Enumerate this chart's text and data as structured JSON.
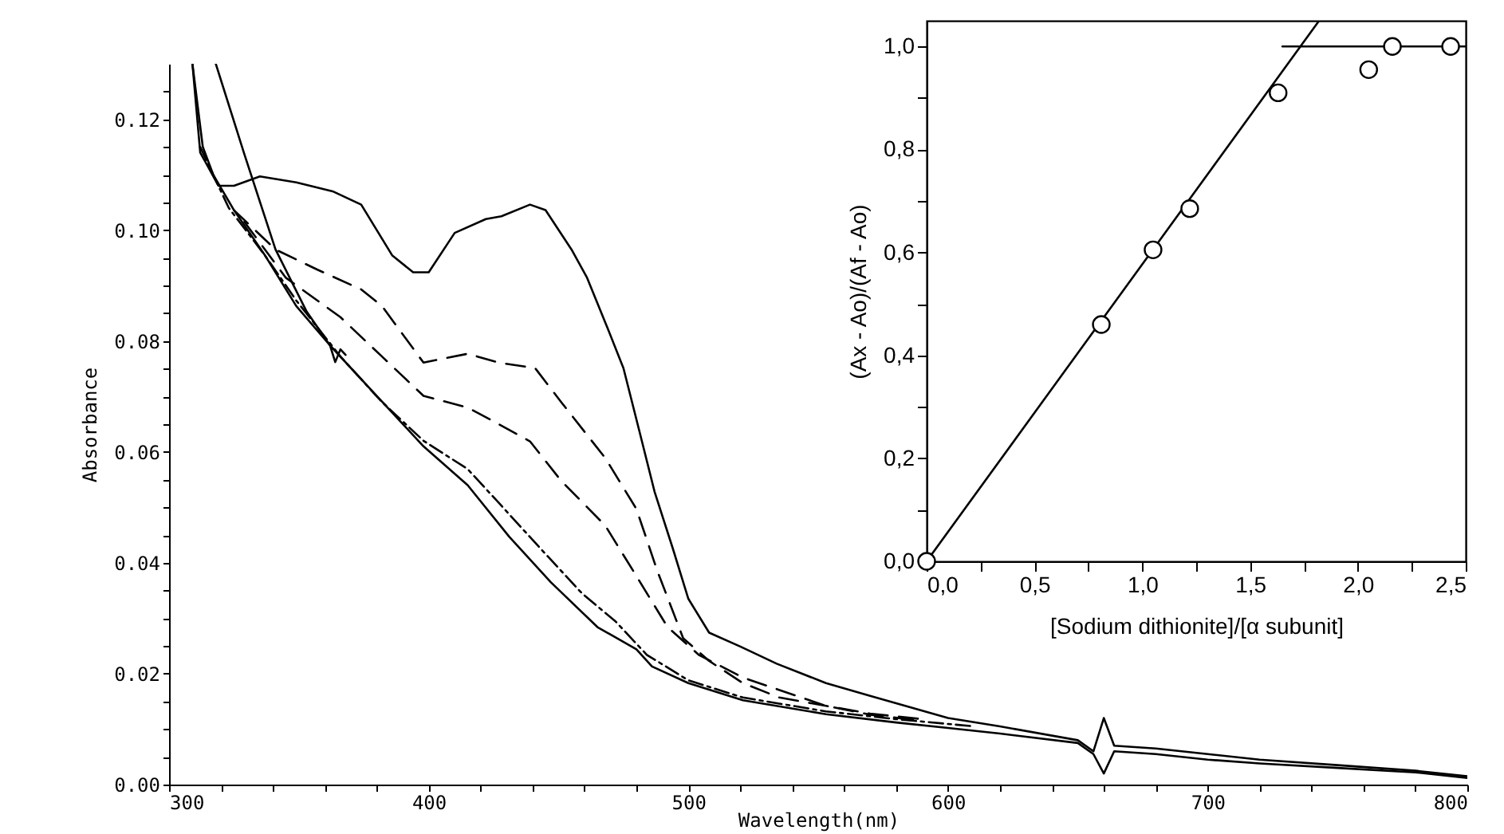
{
  "chart_data": [
    {
      "type": "line",
      "xlabel": "Wavelength(nm)",
      "ylabel": "Absorbance",
      "xlim": [
        300,
        800
      ],
      "ylim": [
        0,
        0.13
      ],
      "xticks": [
        {
          "value": 300,
          "label": "300"
        },
        {
          "value": 320,
          "label": null
        },
        {
          "value": 340,
          "label": null
        },
        {
          "value": 360,
          "label": null
        },
        {
          "value": 380,
          "label": null
        },
        {
          "value": 400,
          "label": "400"
        },
        {
          "value": 420,
          "label": null
        },
        {
          "value": 440,
          "label": null
        },
        {
          "value": 460,
          "label": null
        },
        {
          "value": 480,
          "label": null
        },
        {
          "value": 500,
          "label": "500"
        },
        {
          "value": 520,
          "label": null
        },
        {
          "value": 540,
          "label": null
        },
        {
          "value": 560,
          "label": null
        },
        {
          "value": 580,
          "label": null
        },
        {
          "value": 600,
          "label": "600"
        },
        {
          "value": 620,
          "label": null
        },
        {
          "value": 640,
          "label": null
        },
        {
          "value": 660,
          "label": null
        },
        {
          "value": 680,
          "label": null
        },
        {
          "value": 700,
          "label": "700"
        },
        {
          "value": 720,
          "label": null
        },
        {
          "value": 740,
          "label": null
        },
        {
          "value": 760,
          "label": null
        },
        {
          "value": 780,
          "label": null
        },
        {
          "value": 800,
          "label": "800"
        }
      ],
      "yticks": [
        {
          "value": 0,
          "label": "0.00"
        },
        {
          "value": 0.005,
          "label": null
        },
        {
          "value": 0.01,
          "label": null
        },
        {
          "value": 0.015,
          "label": null
        },
        {
          "value": 0.02,
          "label": "0.02"
        },
        {
          "value": 0.025,
          "label": null
        },
        {
          "value": 0.03,
          "label": null
        },
        {
          "value": 0.035,
          "label": null
        },
        {
          "value": 0.04,
          "label": "0.04"
        },
        {
          "value": 0.045,
          "label": null
        },
        {
          "value": 0.05,
          "label": null
        },
        {
          "value": 0.055,
          "label": null
        },
        {
          "value": 0.06,
          "label": "0.06"
        },
        {
          "value": 0.065,
          "label": null
        },
        {
          "value": 0.07,
          "label": null
        },
        {
          "value": 0.075,
          "label": null
        },
        {
          "value": 0.08,
          "label": "0.08"
        },
        {
          "value": 0.085,
          "label": null
        },
        {
          "value": 0.09,
          "label": null
        },
        {
          "value": 0.095,
          "label": null
        },
        {
          "value": 0.1,
          "label": "0.10"
        },
        {
          "value": 0.105,
          "label": null
        },
        {
          "value": 0.11,
          "label": null
        },
        {
          "value": 0.115,
          "label": null
        },
        {
          "value": 0.12,
          "label": "0.12"
        },
        {
          "value": 0.125,
          "label": null
        }
      ],
      "series": [
        {
          "color": "#000000",
          "line_style": "solid",
          "x": [
            309,
            312,
            319,
            325,
            335,
            349,
            363,
            374,
            386,
            394,
            400,
            410,
            422,
            428,
            439,
            445,
            455,
            461,
            469,
            475,
            481,
            487,
            494,
            500,
            508,
            520,
            534,
            553,
            570,
            600,
            620,
            650,
            656,
            660,
            664,
            680,
            700,
            720,
            750,
            780,
            800
          ],
          "values": [
            0.13,
            0.114,
            0.108,
            0.108,
            0.1097,
            0.1086,
            0.107,
            0.1046,
            0.0954,
            0.0924,
            0.0924,
            0.0995,
            0.102,
            0.1025,
            0.1046,
            0.1036,
            0.0965,
            0.0914,
            0.0822,
            0.0751,
            0.064,
            0.0528,
            0.0426,
            0.0335,
            0.0274,
            0.0249,
            0.0218,
            0.0183,
            0.016,
            0.012,
            0.0105,
            0.008,
            0.006,
            0.012,
            0.007,
            0.0065,
            0.0055,
            0.0045,
            0.0035,
            0.0025,
            0.0015
          ]
        },
        {
          "color": "#000000",
          "line_style": "dashed",
          "x": [
            325,
            341,
            357,
            374,
            382,
            398,
            415,
            427,
            441,
            451,
            468,
            480,
            488,
            498,
            508,
            521,
            535,
            553,
            570,
            590
          ],
          "values": [
            0.1036,
            0.0965,
            0.0929,
            0.0893,
            0.0863,
            0.0761,
            0.0777,
            0.0761,
            0.0751,
            0.069,
            0.0589,
            0.0497,
            0.0386,
            0.0264,
            0.0223,
            0.0183,
            0.0157,
            0.0142,
            0.0128,
            0.0118
          ]
        },
        {
          "color": "#000000",
          "line_style": "dashed",
          "x": [
            329,
            345,
            366,
            382,
            398,
            415,
            427,
            439,
            451,
            468,
            480,
            492,
            504,
            521,
            553,
            570,
            590
          ],
          "values": [
            0.1015,
            0.0914,
            0.0843,
            0.0772,
            0.0701,
            0.068,
            0.065,
            0.0619,
            0.0548,
            0.0467,
            0.0376,
            0.0284,
            0.0234,
            0.0193,
            0.0142,
            0.0126,
            0.0115
          ]
        },
        {
          "color": "#000000",
          "line_style": "dashdot",
          "x": [
            312,
            323,
            337,
            349,
            366,
            382,
            398,
            415,
            427,
            443,
            459,
            472,
            484,
            500,
            521,
            553,
            580,
            610
          ],
          "values": [
            0.115,
            0.104,
            0.0954,
            0.0873,
            0.0772,
            0.069,
            0.062,
            0.0569,
            0.0508,
            0.0426,
            0.0345,
            0.0294,
            0.0234,
            0.0188,
            0.0157,
            0.0132,
            0.0118,
            0.0105
          ]
        },
        {
          "color": "#000000",
          "line_style": "solid",
          "x": [
            309,
            313,
            317,
            325,
            337,
            349,
            362,
            378,
            398,
            415,
            431,
            447,
            465,
            480,
            486,
            500,
            521,
            553,
            580,
            600,
            620,
            650,
            656,
            660,
            664,
            680,
            700,
            720,
            750,
            780,
            800
          ],
          "values": [
            0.13,
            0.115,
            0.11,
            0.1036,
            0.0954,
            0.0863,
            0.0792,
            0.0711,
            0.061,
            0.054,
            0.0447,
            0.0365,
            0.0284,
            0.0244,
            0.0213,
            0.0183,
            0.0152,
            0.0127,
            0.0112,
            0.0102,
            0.0092,
            0.0075,
            0.0055,
            0.002,
            0.006,
            0.0055,
            0.0045,
            0.0038,
            0.003,
            0.0022,
            0.0012
          ]
        },
        {
          "color": "#000000",
          "line_style": "solid",
          "x": [
            318,
            329,
            341,
            353,
            362,
            364,
            366,
            368
          ],
          "values": [
            0.13,
            0.1137,
            0.0965,
            0.0853,
            0.0792,
            0.0762,
            0.0785,
            0.0775
          ]
        }
      ]
    },
    {
      "type": "scatter",
      "xlabel": "[Sodium dithionite]/[α subunit]",
      "ylabel": "(Ax - Ao)/(Af - Ao)",
      "xlim": [
        0,
        2.5
      ],
      "ylim": [
        0,
        1.05
      ],
      "xticks": [
        {
          "value": 0,
          "label": "0,0"
        },
        {
          "value": 0.25,
          "label": null
        },
        {
          "value": 0.5,
          "label": "0,5"
        },
        {
          "value": 0.75,
          "label": null
        },
        {
          "value": 1,
          "label": "1,0"
        },
        {
          "value": 1.25,
          "label": null
        },
        {
          "value": 1.5,
          "label": "1,5"
        },
        {
          "value": 1.75,
          "label": null
        },
        {
          "value": 2,
          "label": "2,0"
        },
        {
          "value": 2.25,
          "label": null
        },
        {
          "value": 2.5,
          "label": "2,5"
        }
      ],
      "yticks": [
        {
          "value": 0,
          "label": "0,0"
        },
        {
          "value": 0.1,
          "label": null
        },
        {
          "value": 0.2,
          "label": "0,2"
        },
        {
          "value": 0.3,
          "label": null
        },
        {
          "value": 0.4,
          "label": "0,4"
        },
        {
          "value": 0.5,
          "label": null
        },
        {
          "value": 0.6,
          "label": "0,6"
        },
        {
          "value": 0.7,
          "label": null
        },
        {
          "value": 0.8,
          "label": "0,8"
        },
        {
          "value": 0.9,
          "label": null
        },
        {
          "value": 1,
          "label": "1,0"
        }
      ],
      "series": [
        {
          "marker": "circle",
          "color": "#000000",
          "x": [
            0,
            0.81,
            1.05,
            1.22,
            1.63,
            2.05,
            2.16,
            2.43
          ],
          "values": [
            0,
            0.46,
            0.605,
            0.685,
            0.91,
            0.955,
            1.0,
            1.0
          ]
        },
        {
          "type": "line",
          "color": "#000000",
          "x": [
            0,
            1.82
          ],
          "values": [
            0,
            1.05
          ]
        },
        {
          "type": "line",
          "color": "#000000",
          "x": [
            1.65,
            2.5
          ],
          "values": [
            1,
            1
          ]
        }
      ]
    }
  ]
}
